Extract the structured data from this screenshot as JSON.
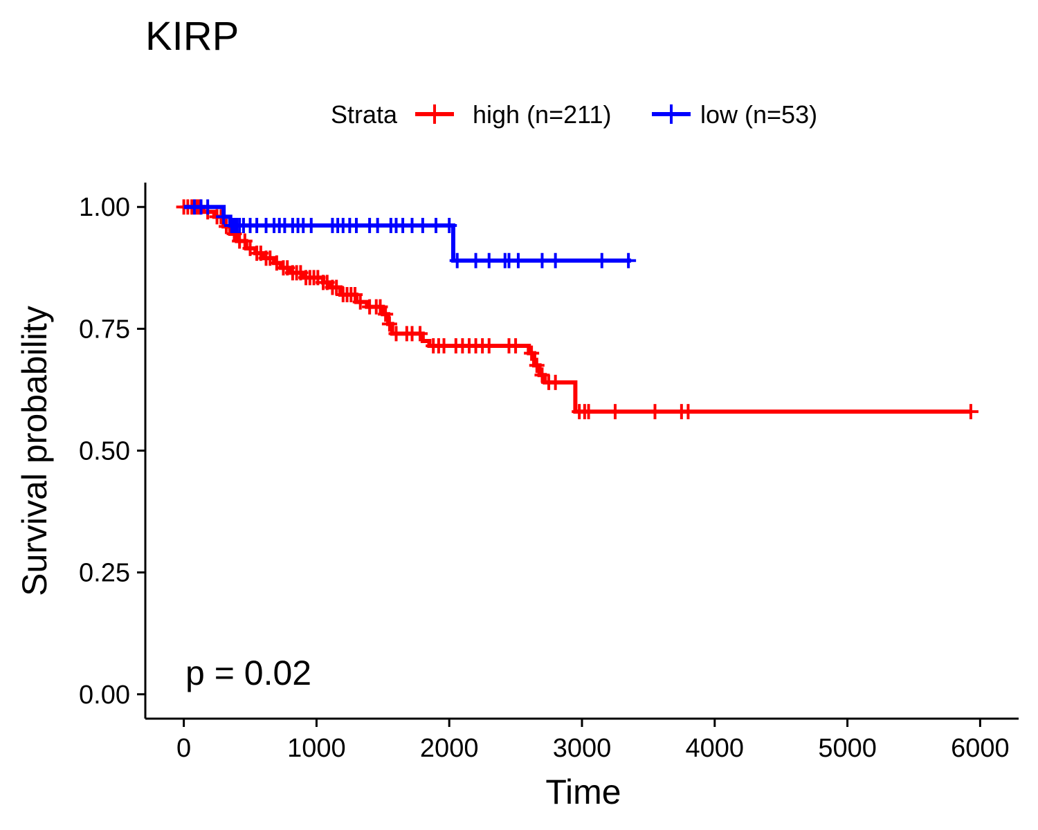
{
  "chart_data": {
    "type": "line",
    "step": true,
    "title": "KIRP",
    "xlabel": "Time",
    "ylabel": "Survival probability",
    "xlim": [
      -290,
      6290
    ],
    "ylim": [
      -0.05,
      1.05
    ],
    "xticks": [
      0,
      1000,
      2000,
      3000,
      4000,
      5000,
      6000
    ],
    "xtick_labels": [
      "0",
      "1000",
      "2000",
      "3000",
      "4000",
      "5000",
      "6000"
    ],
    "yticks": [
      0,
      0.25,
      0.5,
      0.75,
      1.0
    ],
    "ytick_labels": [
      "0.00",
      "0.25",
      "0.50",
      "0.75",
      "1.00"
    ],
    "grid": false,
    "legend": {
      "title": "Strata",
      "placement": "top",
      "entries": [
        "high (n=211)",
        "low (n=53)"
      ]
    },
    "annotation": "p = 0.02",
    "series": [
      {
        "name": "high (n=211)",
        "color": "#ff0000",
        "steps": [
          [
            0,
            1.0
          ],
          [
            150,
            0.99
          ],
          [
            230,
            0.98
          ],
          [
            300,
            0.96
          ],
          [
            350,
            0.945
          ],
          [
            400,
            0.93
          ],
          [
            470,
            0.915
          ],
          [
            540,
            0.905
          ],
          [
            600,
            0.895
          ],
          [
            680,
            0.885
          ],
          [
            730,
            0.875
          ],
          [
            800,
            0.865
          ],
          [
            900,
            0.855
          ],
          [
            1050,
            0.845
          ],
          [
            1100,
            0.835
          ],
          [
            1180,
            0.82
          ],
          [
            1300,
            0.805
          ],
          [
            1380,
            0.795
          ],
          [
            1500,
            0.78
          ],
          [
            1540,
            0.76
          ],
          [
            1570,
            0.74
          ],
          [
            1800,
            0.725
          ],
          [
            1850,
            0.715
          ],
          [
            2600,
            0.7
          ],
          [
            2640,
            0.675
          ],
          [
            2680,
            0.655
          ],
          [
            2720,
            0.64
          ],
          [
            2950,
            0.58
          ],
          [
            5930,
            0.58
          ]
        ],
        "censor_x": [
          0,
          30,
          60,
          100,
          120,
          180,
          250,
          280,
          320,
          380,
          420,
          460,
          500,
          550,
          580,
          620,
          650,
          700,
          750,
          780,
          820,
          850,
          880,
          920,
          950,
          980,
          1010,
          1050,
          1080,
          1120,
          1150,
          1200,
          1230,
          1260,
          1290,
          1330,
          1400,
          1450,
          1480,
          1520,
          1550,
          1600,
          1680,
          1720,
          1780,
          1880,
          1920,
          1960,
          2050,
          2100,
          2150,
          2200,
          2250,
          2300,
          2450,
          2500,
          2620,
          2660,
          2700,
          2750,
          2800,
          2980,
          3020,
          3050,
          3250,
          3550,
          3750,
          3800,
          5930
        ]
      },
      {
        "name": "low (n=53)",
        "color": "#0000ff",
        "steps": [
          [
            0,
            1.0
          ],
          [
            300,
            0.98
          ],
          [
            350,
            0.962
          ],
          [
            2030,
            0.89
          ],
          [
            3370,
            0.89
          ]
        ],
        "censor_x": [
          80,
          130,
          180,
          300,
          360,
          380,
          400,
          420,
          450,
          500,
          550,
          620,
          680,
          720,
          760,
          820,
          860,
          900,
          960,
          1120,
          1160,
          1200,
          1250,
          1300,
          1400,
          1460,
          1560,
          1600,
          1650,
          1720,
          1800,
          1900,
          2000,
          2060,
          2200,
          2300,
          2420,
          2450,
          2520,
          2700,
          2800,
          3150,
          3350
        ]
      }
    ]
  }
}
